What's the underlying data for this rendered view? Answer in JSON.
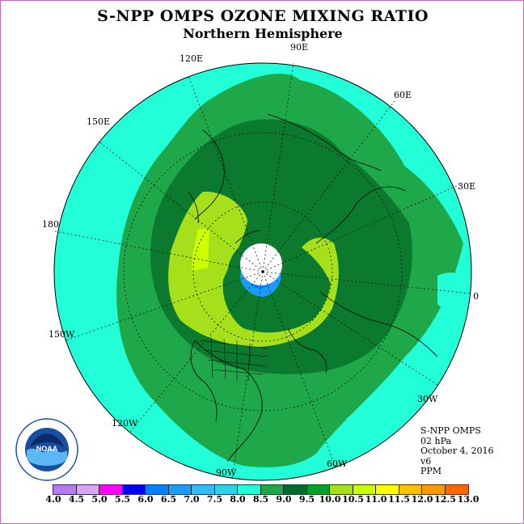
{
  "title": "S-NPP OMPS OZONE MIXING RATIO",
  "subtitle": "Northern Hemisphere",
  "longitude_labels": {
    "lon_90e": "90E",
    "lon_120e": "120E",
    "lon_60e": "60E",
    "lon_150e": "150E",
    "lon_30e": "30E",
    "lon_180": "180",
    "lon_0": "0",
    "lon_150w": "150W",
    "lon_30w": "30W",
    "lon_120w": "120W",
    "lon_60w": "60W",
    "lon_90w": "90W"
  },
  "info": {
    "instrument": "S-NPP OMPS",
    "level": "02 hPa",
    "date": "October 4, 2016",
    "version": "v6",
    "units": "PPM"
  },
  "logo_text": "NOAA",
  "legend": {
    "ticks": [
      "4.0",
      "4.5",
      "5.0",
      "5.5",
      "6.0",
      "6.5",
      "7.0",
      "7.5",
      "8.0",
      "8.5",
      "9.0",
      "9.5",
      "10.0",
      "10.5",
      "11.0",
      "11.5",
      "12.0",
      "12.5",
      "13.0"
    ],
    "colors": [
      "#b57cf0",
      "#d9a6f5",
      "#ff00ff",
      "#0000ee",
      "#0080ff",
      "#1a9cff",
      "#33bbff",
      "#2ed2e6",
      "#22ffd8",
      "#1fa84a",
      "#006b2c",
      "#00a02a",
      "#a6e01a",
      "#ccff00",
      "#ffff00",
      "#ffc000",
      "#ff9900",
      "#ff6600",
      "#ff0000",
      "#8b5a3a"
    ]
  },
  "colors": {
    "level_7_5_8": "#22ffd8",
    "level_8_8_5": "#1fa84a",
    "level_8_5_9": "#0b7a2e",
    "level_9_9_5": "#a6e01a",
    "level_9_5_10": "#ccff00",
    "level_6_5_7": "#1a9cff",
    "level_6_6_5": "#0080ff",
    "no_data": "#ffffff"
  }
}
